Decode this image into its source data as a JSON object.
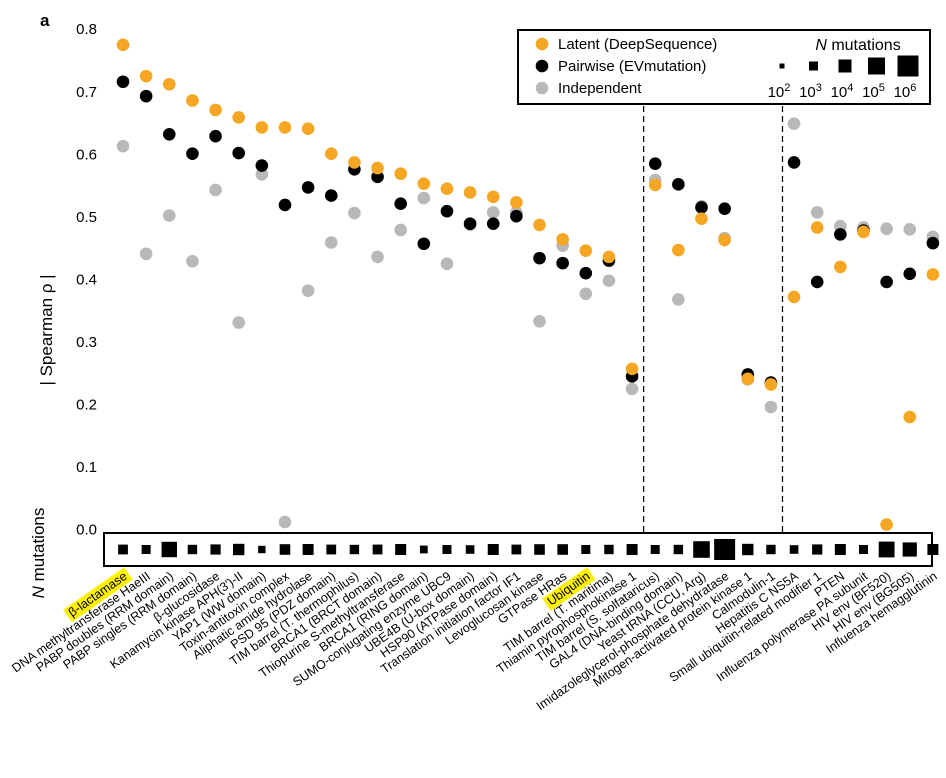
{
  "chart_data": {
    "type": "scatter",
    "panel_label": "a",
    "ylabel": "| Spearman ρ |",
    "count_axis_label_prefix": "N",
    "count_axis_label_suffix": " mutations",
    "ylim": [
      -0.05,
      0.8
    ],
    "yticks": [
      "0.0",
      "0.1",
      "0.2",
      "0.3",
      "0.4",
      "0.5",
      "0.6",
      "0.7",
      "0.8"
    ],
    "ytick_values": [
      0.0,
      0.1,
      0.2,
      0.3,
      0.4,
      0.5,
      0.6,
      0.7,
      0.8
    ],
    "group_dividers_after_index": [
      22,
      28
    ],
    "highlighted_categories": [
      0,
      20
    ],
    "categories": [
      "β-lactamase",
      "DNA methyltransferase HaeIII",
      "PABP doubles (RRM domain)",
      "PABP singles (RRM domain)",
      "β-glucosidase",
      "Kanamycin kinase APH(3')-II",
      "YAP1 (WW domain)",
      "Toxin-antitoxin complex",
      "Aliphatic amide hydrolase",
      "PSD 95 (PDZ domain)",
      "TIM barrel (T. thermophilus)",
      "BRCA1 (BRCT domain)",
      "Thiopurine S-methyltransferase",
      "BRCA1 (RING domain)",
      "SUMO-conjugating enzyme UBC9",
      "UBE4B (U-box domain)",
      "HSP90 (ATPase domain)",
      "Translation initiation factor IF1",
      "Levoglucosan kinase",
      "GTPase HRas",
      "Ubiquitin",
      "TIM barrel (T. maritima)",
      "Thiamin pyrophosphokinase 1",
      "TIM barrel (S. solfataricus)",
      "GAL4 (DNA-binding domain)",
      "Yeast tRNA (CCU, Arg)",
      "Imidazoleglycerol-phosphate dehydratase",
      "Mitogen-activated protein kinase 1",
      "Calmodulin-1",
      "Hepatitis C NS5A",
      "Small ubiquitin-related modifier 1",
      "PTEN",
      "Influenza polymerase PA subunit",
      "HIV env (BF520)",
      "HIV env (BG505)",
      "Influenza hemagglutinin"
    ],
    "series": [
      {
        "name": "Latent (DeepSequence)",
        "color": "#F5A623",
        "values": [
          0.775,
          0.725,
          0.712,
          0.686,
          0.671,
          0.659,
          0.643,
          0.643,
          0.641,
          0.601,
          0.587,
          0.578,
          0.569,
          0.553,
          0.545,
          0.539,
          0.532,
          0.523,
          0.487,
          0.464,
          0.446,
          0.436,
          0.257,
          0.551,
          0.447,
          0.497,
          0.463,
          0.241,
          0.232,
          0.372,
          0.483,
          0.42,
          0.476,
          0.008,
          0.18,
          0.408
        ]
      },
      {
        "name": "Pairwise (EVmutation)",
        "color": "#000000",
        "values": [
          0.716,
          0.693,
          0.632,
          0.601,
          0.629,
          0.602,
          0.582,
          0.519,
          0.547,
          0.534,
          0.576,
          0.564,
          0.521,
          0.457,
          0.509,
          0.489,
          0.489,
          0.501,
          0.434,
          0.426,
          0.41,
          0.43,
          0.245,
          0.585,
          0.552,
          0.515,
          0.513,
          0.248,
          0.235,
          0.587,
          0.396,
          0.472,
          0.478,
          0.396,
          0.409,
          0.458
        ]
      },
      {
        "name": "Independent",
        "color": "#B8B8B8",
        "values": [
          0.613,
          0.441,
          0.502,
          0.429,
          0.543,
          0.331,
          0.568,
          0.012,
          0.382,
          0.459,
          0.506,
          0.436,
          0.479,
          0.53,
          0.425,
          0.487,
          0.507,
          0.507,
          0.333,
          0.454,
          0.377,
          0.398,
          0.225,
          0.559,
          0.368,
          0.517,
          0.466,
          0.24,
          0.196,
          0.649,
          0.507,
          0.485,
          0.483,
          0.481,
          0.48,
          0.468
        ]
      }
    ],
    "n_mutations_exponent": [
      3.2,
      3.0,
      4.6,
      3.1,
      3.3,
      3.6,
      2.6,
      3.4,
      3.5,
      3.2,
      3.1,
      3.2,
      3.5,
      2.7,
      3.0,
      2.9,
      3.5,
      3.2,
      3.4,
      3.4,
      3.0,
      3.1,
      3.5,
      3.0,
      3.1,
      4.9,
      6.0,
      3.6,
      3.1,
      2.9,
      3.3,
      3.5,
      3.0,
      4.7,
      4.3,
      3.5
    ],
    "legend": {
      "placement": "top-right",
      "size_title_italic": "N",
      "size_title_rest": " mutations",
      "size_entries": [
        {
          "base": "10",
          "exp": "2",
          "exponent": 2
        },
        {
          "base": "10",
          "exp": "3",
          "exponent": 3
        },
        {
          "base": "10",
          "exp": "4",
          "exponent": 4
        },
        {
          "base": "10",
          "exp": "5",
          "exponent": 5
        },
        {
          "base": "10",
          "exp": "6",
          "exponent": 6
        }
      ]
    },
    "highlight_color": "#FFF200"
  }
}
